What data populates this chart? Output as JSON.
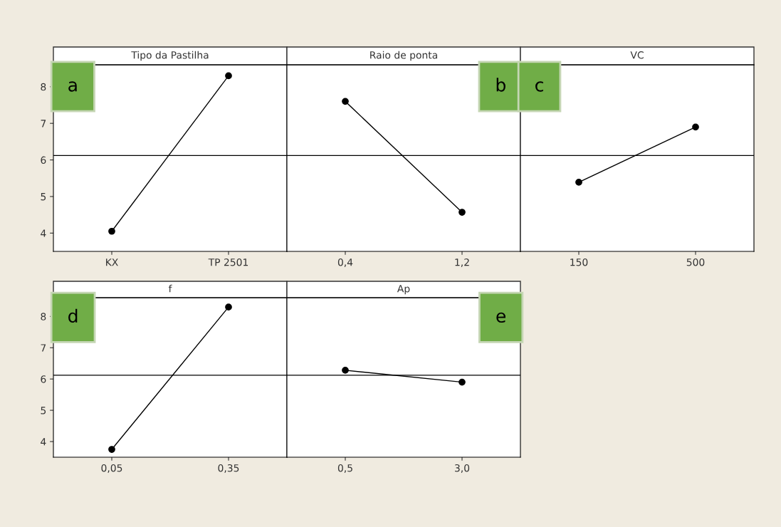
{
  "chart_data": [
    {
      "type": "line",
      "title": "Tipo da Pastilha",
      "categories": [
        "KX",
        "TP 2501"
      ],
      "series": [
        {
          "color": "#000000",
          "values": [
            4.05,
            8.3
          ]
        }
      ],
      "ylim": [
        3.5,
        8.6
      ],
      "yticks": [
        4,
        5,
        6,
        7,
        8
      ],
      "ref_lines": [
        {
          "axis": "y",
          "value": 6.12,
          "color": "#000000"
        }
      ],
      "annotations": [
        "a"
      ],
      "marker": "circle",
      "line_style": "solid",
      "grid": false,
      "legend": false
    },
    {
      "type": "line",
      "title": "Raio de ponta",
      "categories": [
        "0,4",
        "1,2"
      ],
      "series": [
        {
          "color": "#000000",
          "values": [
            7.6,
            4.57
          ]
        }
      ],
      "ylim": [
        3.5,
        8.6
      ],
      "yticks": [
        4,
        5,
        6,
        7,
        8
      ],
      "tick_labels": "x",
      "ref_lines": [
        {
          "axis": "y",
          "value": 6.12,
          "color": "#000000"
        }
      ],
      "annotations": [
        "b"
      ],
      "marker": "circle",
      "line_style": "solid",
      "grid": false,
      "legend": false
    },
    {
      "type": "line",
      "title": "VC",
      "categories": [
        "150",
        "500"
      ],
      "series": [
        {
          "color": "#000000",
          "values": [
            5.39,
            6.9
          ]
        }
      ],
      "ylim": [
        3.5,
        8.6
      ],
      "yticks": [
        4,
        5,
        6,
        7,
        8
      ],
      "tick_labels": "x",
      "ref_lines": [
        {
          "axis": "y",
          "value": 6.12,
          "color": "#000000"
        }
      ],
      "annotations": [
        "c"
      ],
      "marker": "circle",
      "line_style": "solid",
      "grid": false,
      "legend": false
    },
    {
      "type": "line",
      "title": "f",
      "categories": [
        "0,05",
        "0,35"
      ],
      "series": [
        {
          "color": "#000000",
          "values": [
            3.75,
            8.3
          ]
        }
      ],
      "ylim": [
        3.5,
        8.6
      ],
      "yticks": [
        4,
        5,
        6,
        7,
        8
      ],
      "ref_lines": [
        {
          "axis": "y",
          "value": 6.12,
          "color": "#000000"
        }
      ],
      "annotations": [
        "d"
      ],
      "marker": "circle",
      "line_style": "solid",
      "grid": false,
      "legend": false
    },
    {
      "type": "line",
      "title": "Ap",
      "categories": [
        "0,5",
        "3,0"
      ],
      "series": [
        {
          "color": "#000000",
          "values": [
            6.28,
            5.9
          ]
        }
      ],
      "ylim": [
        3.5,
        8.6
      ],
      "yticks": [
        4,
        5,
        6,
        7,
        8
      ],
      "tick_labels": "x",
      "ref_lines": [
        {
          "axis": "y",
          "value": 6.12,
          "color": "#000000"
        }
      ],
      "annotations": [
        "e"
      ],
      "marker": "circle",
      "line_style": "solid",
      "grid": false,
      "legend": false
    }
  ]
}
